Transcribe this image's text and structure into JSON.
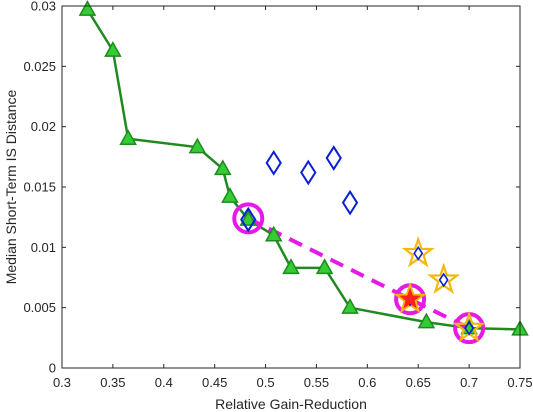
{
  "chart_data": {
    "type": "scatter",
    "title": "",
    "xlabel": "Relative Gain-Reduction",
    "ylabel": "Median Short-Term IS Distance",
    "xlim": [
      0.3,
      0.75
    ],
    "ylim": [
      0,
      0.03
    ],
    "xticks": [
      0.3,
      0.35,
      0.4,
      0.45,
      0.5,
      0.55,
      0.6,
      0.65,
      0.7,
      0.75
    ],
    "xtick_labels": [
      "0.3",
      "0.35",
      "0.4",
      "0.45",
      "0.5",
      "0.55",
      "0.6",
      "0.65",
      "0.7",
      "0.75"
    ],
    "yticks": [
      0,
      0.005,
      0.01,
      0.015,
      0.02,
      0.025,
      0.03
    ],
    "ytick_labels": [
      "0",
      "0.005",
      "0.01",
      "0.015",
      "0.02",
      "0.025",
      "0.03"
    ],
    "grid": false,
    "legend": "none",
    "series": [
      {
        "marker": "triangle-line",
        "color": "#1f8a1f",
        "fill": "#33cc33",
        "x": [
          0.325,
          0.35,
          0.365,
          0.433,
          0.458,
          0.465,
          0.483,
          0.508,
          0.525,
          0.558,
          0.583,
          0.658,
          0.7,
          0.75
        ],
        "y": [
          0.0297,
          0.0263,
          0.019,
          0.0183,
          0.0165,
          0.0142,
          0.0123,
          0.011,
          0.0083,
          0.0083,
          0.005,
          0.0038,
          0.0033,
          0.0032
        ]
      },
      {
        "marker": "diamond",
        "color": "#0a1fd6",
        "x": [
          0.483,
          0.508,
          0.542,
          0.567,
          0.583
        ],
        "y": [
          0.0123,
          0.017,
          0.0162,
          0.0174,
          0.0137
        ]
      },
      {
        "marker": "star",
        "color": "#f2b90a",
        "inner": "#0a1fd6",
        "x": [
          0.642,
          0.65,
          0.675,
          0.7
        ],
        "y": [
          0.0057,
          0.0095,
          0.0073,
          0.0033
        ]
      },
      {
        "marker": "red-star",
        "color": "#ff2020",
        "x": [
          0.642
        ],
        "y": [
          0.0057
        ]
      },
      {
        "marker": "circle",
        "color": "#e619e6",
        "x": [
          0.483,
          0.642,
          0.7
        ],
        "y": [
          0.0124,
          0.0057,
          0.0033
        ]
      },
      {
        "marker": "dashed-line",
        "color": "#e619e6",
        "x": [
          0.483,
          0.642,
          0.7
        ],
        "y": [
          0.0124,
          0.0057,
          0.0033
        ]
      }
    ]
  }
}
